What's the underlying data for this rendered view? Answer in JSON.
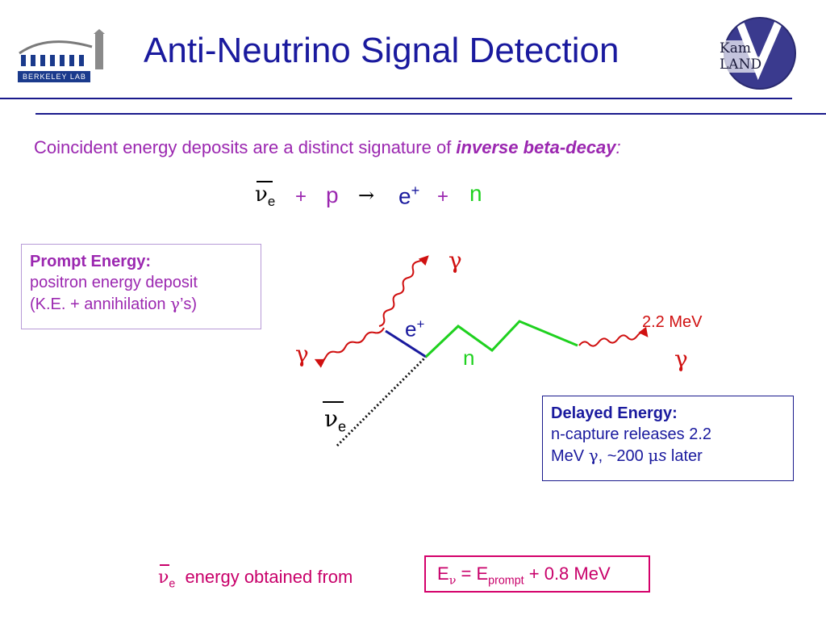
{
  "header": {
    "title": "Anti-Neutrino Signal Detection",
    "logo_left_text": "Berkeley Lab",
    "logo_right_text_1": "Kam",
    "logo_right_text_2": "LAND"
  },
  "intro": {
    "text": "Coincident energy deposits are a distinct signature of ",
    "emphasis": "inverse beta-decay",
    "colon": ":"
  },
  "reaction": {
    "nu": "ν",
    "nu_sub": "e",
    "plus1": "+",
    "p": "p",
    "arrow": "→",
    "e": "e",
    "e_sup": "+",
    "plus2": "+",
    "n": "n"
  },
  "prompt_box": {
    "heading": "Prompt Energy:",
    "line1": "positron energy deposit",
    "line2_a": "(K.E. + annihilation ",
    "line2_gamma": "γ",
    "line2_b": "’s)"
  },
  "delayed_box": {
    "heading": "Delayed Energy:",
    "line1": "n-capture releases 2.2",
    "line2_a": "MeV ",
    "line2_gamma": "γ",
    "line2_b": ", ~200 ",
    "line2_mu": "μ",
    "line2_s": "s",
    "line2_c": " later"
  },
  "diagram": {
    "gamma_top": "γ",
    "gamma_left": "γ",
    "gamma_right": "γ",
    "positron": "e",
    "positron_sup": "+",
    "neutron": "n",
    "capture_energy": "2.2 MeV",
    "nu": "ν",
    "nu_sub": "e"
  },
  "bottom": {
    "nu": "ν",
    "nu_sub": "e",
    "text": " energy obtained from",
    "eq_E": "E",
    "eq_nu": "ν",
    "eq_mid": " = E",
    "eq_prompt": "prompt",
    "eq_end": " + 0.8 MeV"
  },
  "colors": {
    "title": "#1a1a9e",
    "purple": "#9b27b0",
    "green": "#1fd11f",
    "red": "#d01010",
    "magenta": "#c8006a"
  }
}
